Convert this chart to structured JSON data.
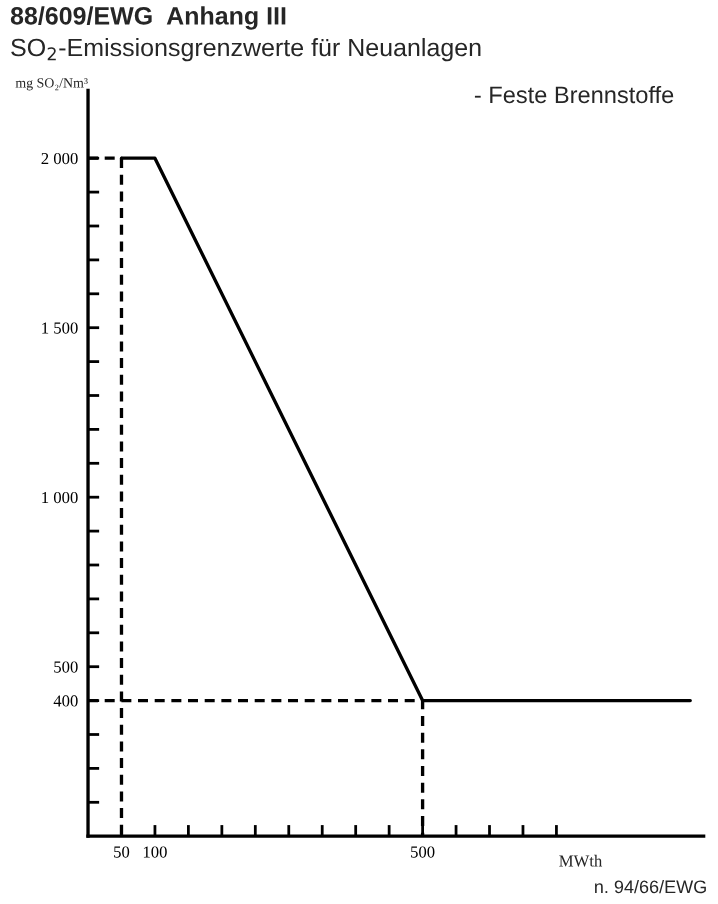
{
  "chart_data": {
    "type": "line",
    "title": "88/609/EWG  Anhang III",
    "subtitle": "SO$_{2}$-Emissionsgrenzwerte für Neuanlagen",
    "ylabel": "mg SO₂/Nm³",
    "xlabel": "MWth",
    "annotations": [
      "- Feste Brennstoffe",
      "n. 94/66/EWG"
    ],
    "series": [
      {
        "color": "#000000",
        "x": [
          50,
          100,
          500,
          900
        ],
        "values": [
          2000,
          2000,
          400,
          400
        ],
        "line_style": "solid"
      },
      {
        "color": "#000000",
        "x": [
          0,
          50,
          50
        ],
        "values": [
          2000,
          2000,
          0
        ],
        "line_style": "dashed"
      },
      {
        "color": "#000000",
        "x": [
          0,
          500,
          500
        ],
        "values": [
          400,
          400,
          0
        ],
        "line_style": "dashed"
      }
    ],
    "xlim": [
      0,
      920
    ],
    "ylim": [
      0,
      2200
    ],
    "xticks": [
      {
        "value": 50,
        "label": "50"
      },
      {
        "value": 100,
        "label": "100"
      },
      {
        "value": 150,
        "label": null
      },
      {
        "value": 200,
        "label": null
      },
      {
        "value": 250,
        "label": null
      },
      {
        "value": 300,
        "label": null
      },
      {
        "value": 350,
        "label": null
      },
      {
        "value": 400,
        "label": null
      },
      {
        "value": 450,
        "label": null
      },
      {
        "value": 500,
        "label": "500"
      },
      {
        "value": 550,
        "label": null
      },
      {
        "value": 600,
        "label": null
      },
      {
        "value": 650,
        "label": null
      },
      {
        "value": 700,
        "label": null
      }
    ],
    "yticks": [
      {
        "value": 100,
        "label": null
      },
      {
        "value": 200,
        "label": null
      },
      {
        "value": 300,
        "label": null
      },
      {
        "value": 400,
        "label": "400"
      },
      {
        "value": 500,
        "label": "500"
      },
      {
        "value": 600,
        "label": null
      },
      {
        "value": 700,
        "label": null
      },
      {
        "value": 800,
        "label": null
      },
      {
        "value": 900,
        "label": null
      },
      {
        "value": 1000,
        "label": "1 000"
      },
      {
        "value": 1100,
        "label": null
      },
      {
        "value": 1200,
        "label": null
      },
      {
        "value": 1300,
        "label": null
      },
      {
        "value": 1400,
        "label": null
      },
      {
        "value": 1500,
        "label": "1 500"
      },
      {
        "value": 1600,
        "label": null
      },
      {
        "value": 1700,
        "label": null
      },
      {
        "value": 1800,
        "label": null
      },
      {
        "value": 1900,
        "label": null
      },
      {
        "value": 2000,
        "label": "2 000"
      }
    ],
    "grid": false,
    "legend": false,
    "marker": "none"
  }
}
